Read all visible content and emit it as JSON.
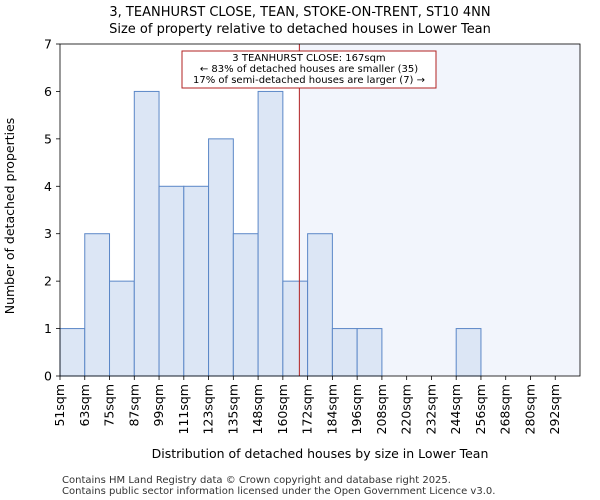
{
  "chart_data": {
    "type": "bar",
    "title": "3, TEANHURST CLOSE, TEAN, STOKE-ON-TRENT, ST10 4NN",
    "subtitle": "Size of property relative to detached houses in Lower Tean",
    "xlabel": "Distribution of detached houses by size in Lower Tean",
    "ylabel": "Number of detached properties",
    "categories": [
      "51sqm",
      "63sqm",
      "75sqm",
      "87sqm",
      "99sqm",
      "111sqm",
      "123sqm",
      "135sqm",
      "148sqm",
      "160sqm",
      "172sqm",
      "184sqm",
      "196sqm",
      "208sqm",
      "220sqm",
      "232sqm",
      "244sqm",
      "256sqm",
      "268sqm",
      "280sqm",
      "292sqm"
    ],
    "values": [
      1,
      3,
      2,
      6,
      4,
      4,
      5,
      3,
      6,
      2,
      3,
      1,
      1,
      0,
      0,
      0,
      1,
      0,
      0,
      0,
      0
    ],
    "ylim": [
      0,
      7
    ],
    "yticks": [
      0,
      1,
      2,
      3,
      4,
      5,
      6,
      7
    ],
    "grid": false,
    "property_marker": {
      "value": 167,
      "unit": "sqm",
      "color": "#b22222",
      "annotation_lines": [
        "3 TEANHURST CLOSE: 167sqm",
        "← 83% of detached houses are smaller (35)",
        "17% of semi-detached houses are larger (7) →"
      ]
    },
    "colors": {
      "bar_fill": "#dce6f5",
      "bar_edge": "#5b87c7",
      "highlight_region": "#f2f5fc",
      "marker": "#b22222"
    }
  },
  "footer": {
    "line1": "Contains HM Land Registry data © Crown copyright and database right 2025.",
    "line2": "Contains public sector information licensed under the Open Government Licence v3.0."
  }
}
